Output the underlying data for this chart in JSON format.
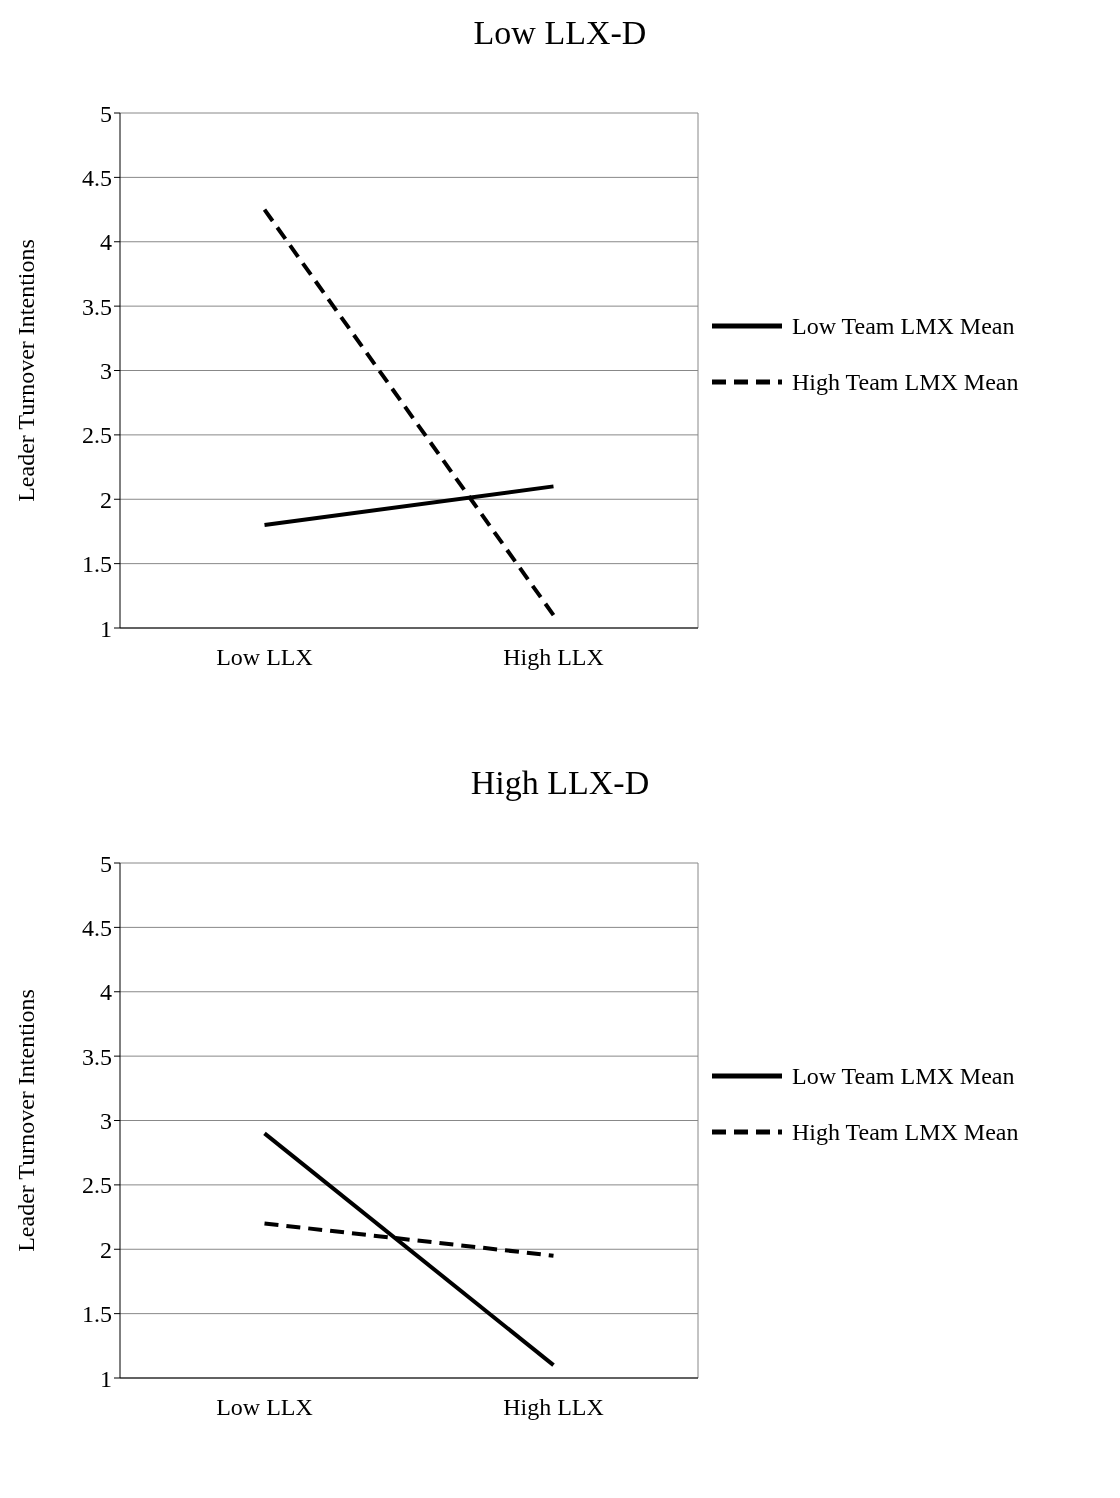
{
  "chart_data": [
    {
      "type": "line",
      "title": "Low LLX-D",
      "ylabel": "Leader Turnover Intentions",
      "categories": [
        "Low LLX",
        "High LLX"
      ],
      "series": [
        {
          "name": "Low Team LMX Mean",
          "color": "#000000",
          "values": [
            1.8,
            2.1
          ],
          "line_style": "solid"
        },
        {
          "name": "High Team LMX Mean",
          "color": "#000000",
          "values": [
            4.25,
            1.1
          ],
          "line_style": "dashed"
        }
      ],
      "ylim": [
        1,
        5
      ],
      "yticks": [
        1,
        1.5,
        2,
        2.5,
        3,
        3.5,
        4,
        4.5,
        5
      ],
      "grid": "y",
      "legend": "right"
    },
    {
      "type": "line",
      "title": "High LLX-D",
      "ylabel": "Leader Turnover Intentions",
      "categories": [
        "Low LLX",
        "High LLX"
      ],
      "series": [
        {
          "name": "Low Team LMX Mean",
          "color": "#000000",
          "values": [
            2.9,
            1.1
          ],
          "line_style": "solid"
        },
        {
          "name": "High Team LMX Mean",
          "color": "#000000",
          "values": [
            2.2,
            1.95
          ],
          "line_style": "dashed"
        }
      ],
      "ylim": [
        1,
        5
      ],
      "yticks": [
        1,
        1.5,
        2,
        2.5,
        3,
        3.5,
        4,
        4.5,
        5
      ],
      "grid": "y",
      "legend": "right"
    }
  ]
}
